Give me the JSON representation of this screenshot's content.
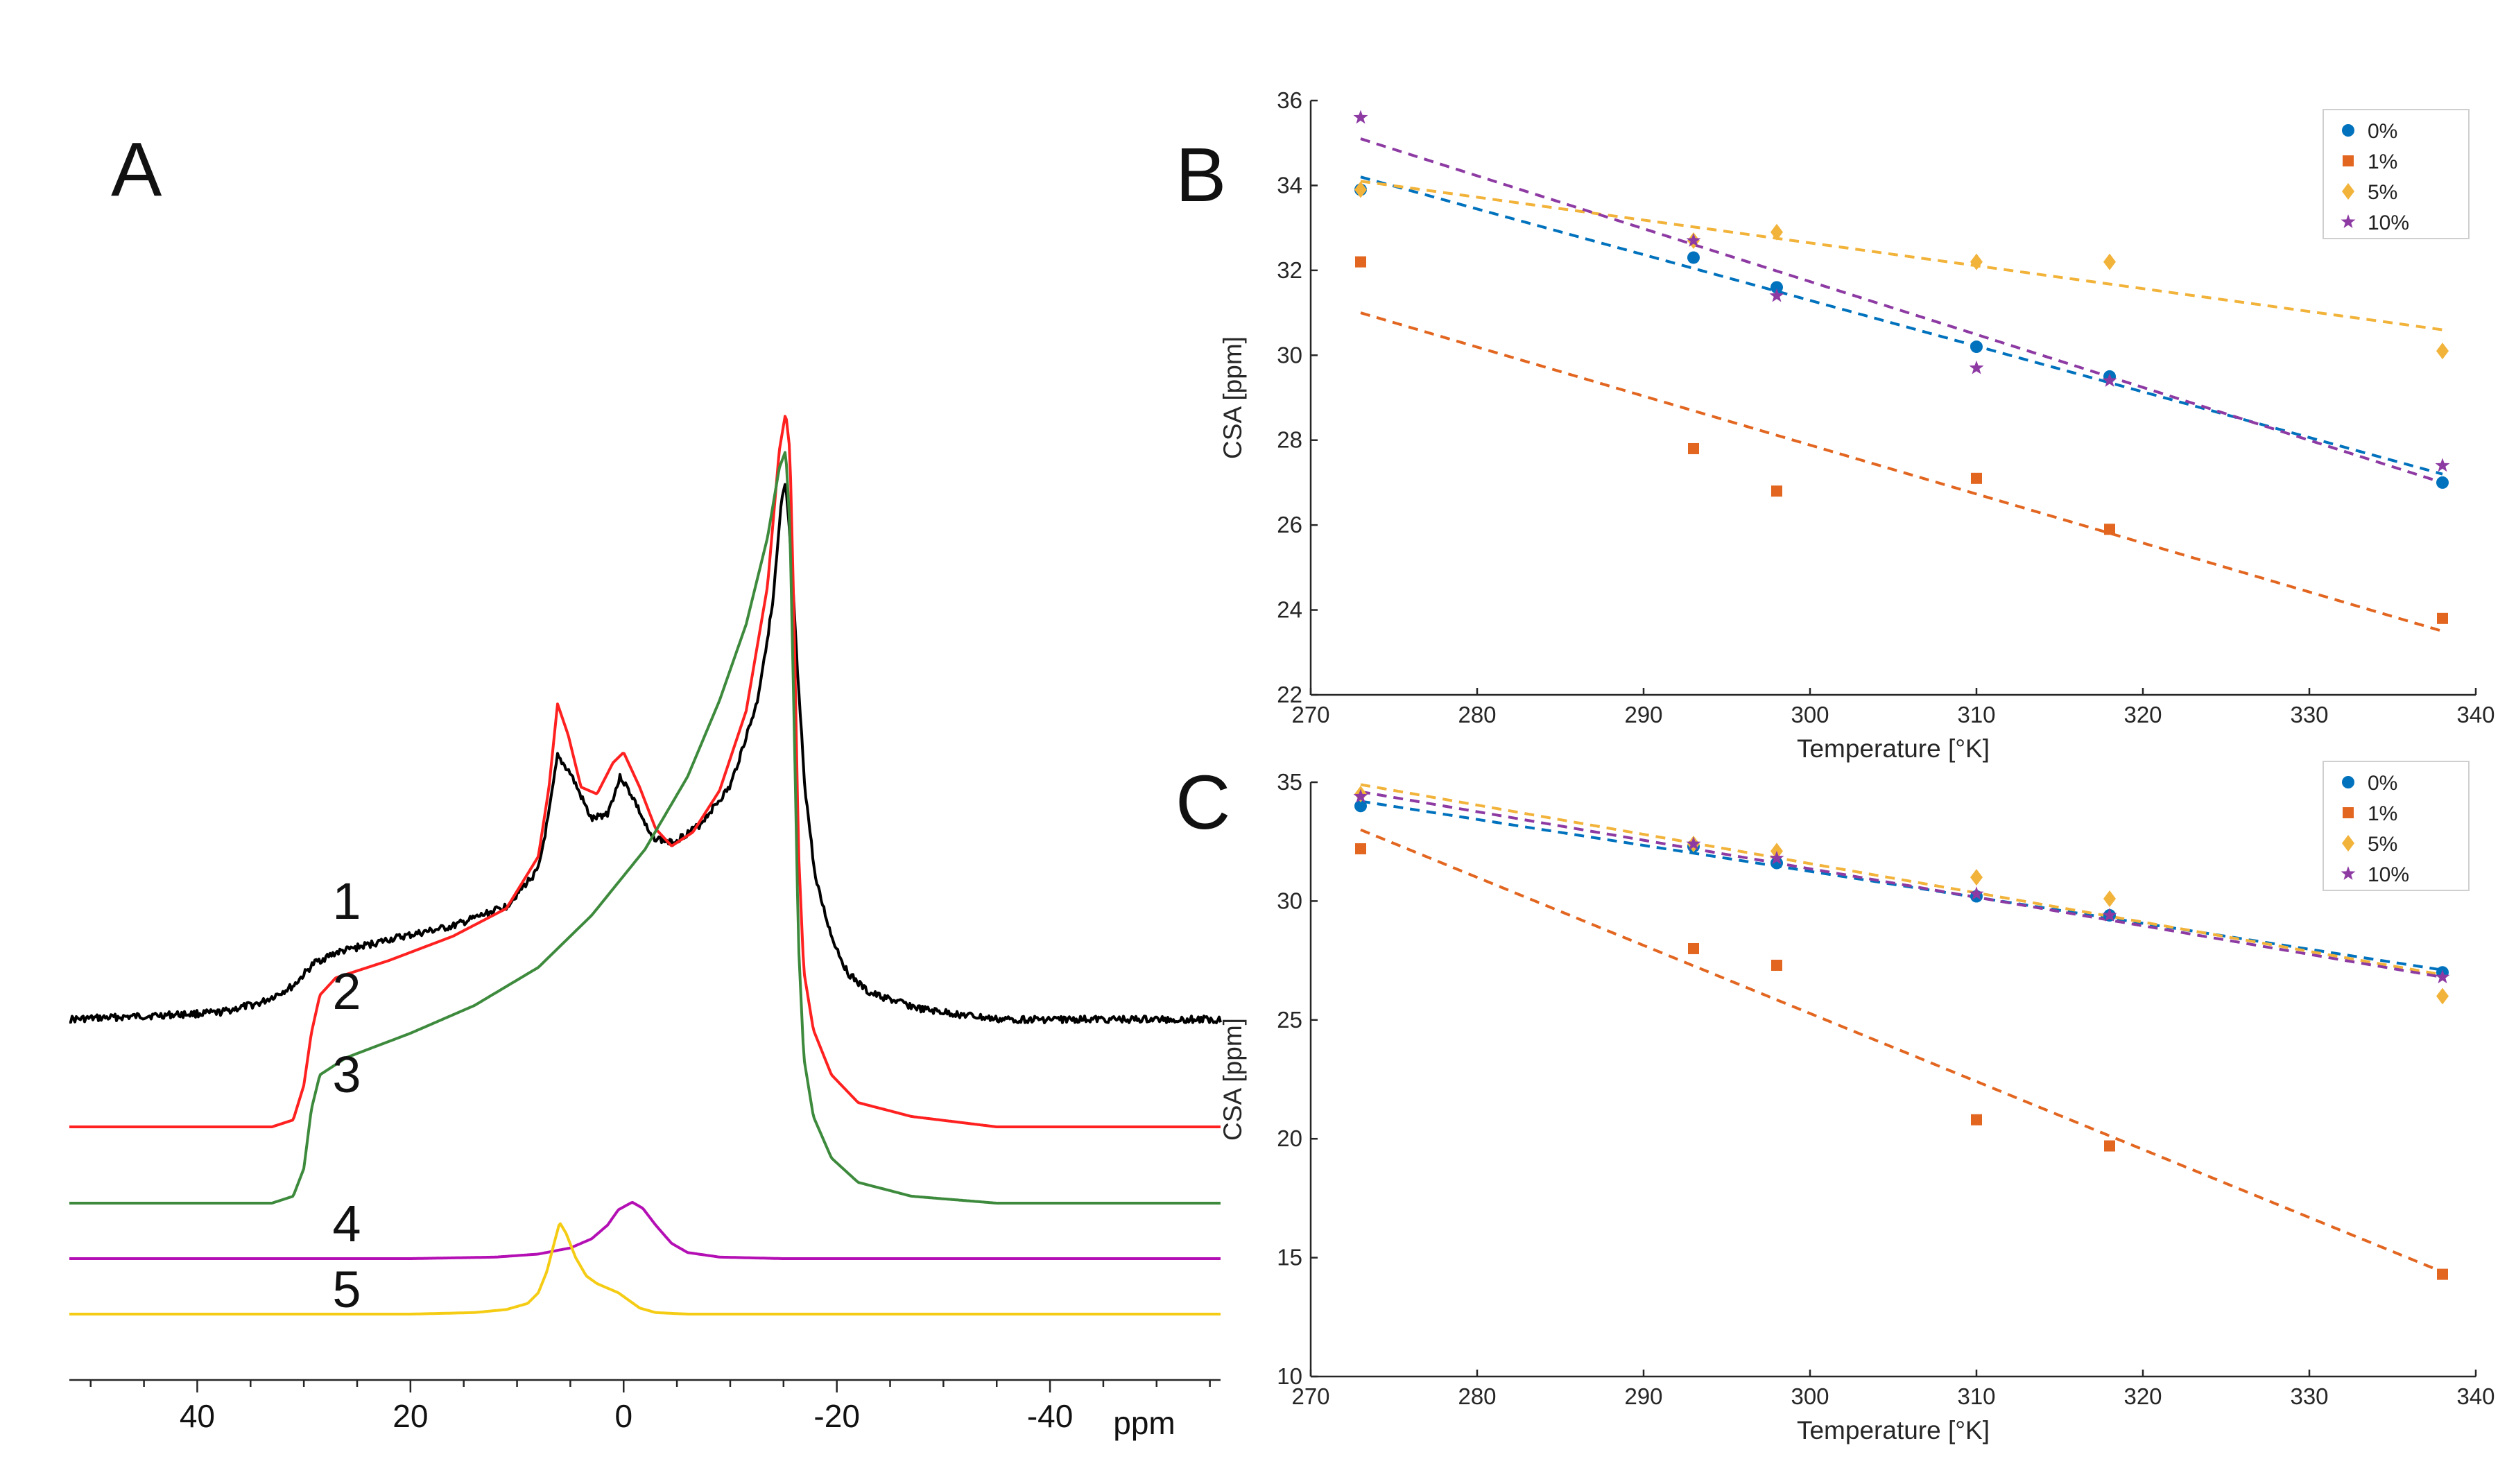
{
  "chart_data": [
    {
      "id": "A",
      "panel_label": "A",
      "type": "line",
      "title": "",
      "xlabel": "ppm",
      "ylabel": "",
      "xlim": [
        52,
        -56
      ],
      "x_ticks": [
        40,
        20,
        0,
        -20,
        -40
      ],
      "x_tick_labels": [
        "40",
        "20",
        "0",
        "-20",
        "-40"
      ],
      "series": [
        {
          "name": "1",
          "label": "1",
          "color": "#000000",
          "baseline": 0.0,
          "noisy": true,
          "points": [
            [
              52,
              0.0
            ],
            [
              38,
              0.02
            ],
            [
              34,
              0.05
            ],
            [
              31,
              0.1
            ],
            [
              29,
              0.17
            ],
            [
              27,
              0.2
            ],
            [
              22,
              0.24
            ],
            [
              16,
              0.28
            ],
            [
              11,
              0.34
            ],
            [
              8,
              0.45
            ],
            [
              7,
              0.62
            ],
            [
              6.2,
              0.79
            ],
            [
              5,
              0.74
            ],
            [
              3,
              0.6
            ],
            [
              1.5,
              0.62
            ],
            [
              0.3,
              0.73
            ],
            [
              -1,
              0.66
            ],
            [
              -2.5,
              0.55
            ],
            [
              -4.5,
              0.53
            ],
            [
              -7,
              0.58
            ],
            [
              -10,
              0.7
            ],
            [
              -12.5,
              0.95
            ],
            [
              -14,
              1.25
            ],
            [
              -14.8,
              1.55
            ],
            [
              -15.2,
              1.61
            ],
            [
              -15.7,
              1.4
            ],
            [
              -16.3,
              1.05
            ],
            [
              -17,
              0.7
            ],
            [
              -18,
              0.42
            ],
            [
              -19.5,
              0.25
            ],
            [
              -21,
              0.14
            ],
            [
              -23,
              0.08
            ],
            [
              -28,
              0.03
            ],
            [
              -35,
              0.0
            ],
            [
              -56,
              0.0
            ]
          ]
        },
        {
          "name": "2",
          "label": "2",
          "color": "#ff2020",
          "baseline": 0.0,
          "noisy": false,
          "points": [
            [
              52,
              0.0
            ],
            [
              33,
              0.0
            ],
            [
              31,
              0.02
            ],
            [
              30,
              0.12
            ],
            [
              29.3,
              0.27
            ],
            [
              28.5,
              0.38
            ],
            [
              27,
              0.43
            ],
            [
              22,
              0.48
            ],
            [
              16,
              0.55
            ],
            [
              11,
              0.63
            ],
            [
              8,
              0.78
            ],
            [
              7,
              0.98
            ],
            [
              6.2,
              1.22
            ],
            [
              5.2,
              1.13
            ],
            [
              4,
              0.98
            ],
            [
              2.5,
              0.96
            ],
            [
              1,
              1.05
            ],
            [
              0,
              1.08
            ],
            [
              -1.5,
              0.98
            ],
            [
              -3,
              0.86
            ],
            [
              -4.5,
              0.81
            ],
            [
              -6.5,
              0.85
            ],
            [
              -9,
              0.97
            ],
            [
              -11.5,
              1.2
            ],
            [
              -13.5,
              1.56
            ],
            [
              -14.6,
              1.95
            ],
            [
              -15.2,
              2.06
            ],
            [
              -15.6,
              1.95
            ],
            [
              -16.0,
              1.45
            ],
            [
              -16.4,
              0.8
            ],
            [
              -16.9,
              0.45
            ],
            [
              -17.8,
              0.28
            ],
            [
              -19.5,
              0.15
            ],
            [
              -22,
              0.07
            ],
            [
              -27,
              0.03
            ],
            [
              -35,
              0.0
            ],
            [
              -56,
              0.0
            ]
          ]
        },
        {
          "name": "3",
          "label": "3",
          "color": "#3d8a3d",
          "baseline": 0.0,
          "noisy": false,
          "points": [
            [
              52,
              0.0
            ],
            [
              33,
              0.0
            ],
            [
              31,
              0.02
            ],
            [
              30,
              0.1
            ],
            [
              29.3,
              0.27
            ],
            [
              28.5,
              0.37
            ],
            [
              26,
              0.42
            ],
            [
              20,
              0.49
            ],
            [
              14,
              0.57
            ],
            [
              8,
              0.68
            ],
            [
              3,
              0.83
            ],
            [
              -2,
              1.02
            ],
            [
              -6,
              1.23
            ],
            [
              -9,
              1.45
            ],
            [
              -11.5,
              1.67
            ],
            [
              -13.5,
              1.92
            ],
            [
              -14.6,
              2.12
            ],
            [
              -15.2,
              2.17
            ],
            [
              -15.6,
              1.95
            ],
            [
              -16.0,
              1.38
            ],
            [
              -16.4,
              0.75
            ],
            [
              -16.9,
              0.42
            ],
            [
              -17.8,
              0.25
            ],
            [
              -19.5,
              0.13
            ],
            [
              -22,
              0.06
            ],
            [
              -27,
              0.02
            ],
            [
              -35,
              0.0
            ],
            [
              -56,
              0.0
            ]
          ]
        },
        {
          "name": "4",
          "label": "4",
          "color": "#b40fb4",
          "baseline": 0.0,
          "noisy": false,
          "points": [
            [
              52,
              0.0
            ],
            [
              20,
              0.0
            ],
            [
              12,
              0.01
            ],
            [
              8,
              0.03
            ],
            [
              5,
              0.07
            ],
            [
              3,
              0.13
            ],
            [
              1.5,
              0.22
            ],
            [
              0.5,
              0.32
            ],
            [
              -0.8,
              0.37
            ],
            [
              -1.8,
              0.33
            ],
            [
              -3,
              0.22
            ],
            [
              -4.5,
              0.1
            ],
            [
              -6,
              0.04
            ],
            [
              -9,
              0.01
            ],
            [
              -15,
              0.0
            ],
            [
              -56,
              0.0
            ]
          ]
        },
        {
          "name": "5",
          "label": "5",
          "color": "#f5cc14",
          "baseline": 0.0,
          "noisy": false,
          "points": [
            [
              52,
              0.0
            ],
            [
              20,
              0.0
            ],
            [
              14,
              0.01
            ],
            [
              11,
              0.03
            ],
            [
              9,
              0.07
            ],
            [
              8,
              0.14
            ],
            [
              7.2,
              0.28
            ],
            [
              6.5,
              0.47
            ],
            [
              6,
              0.6
            ],
            [
              5.4,
              0.53
            ],
            [
              4.5,
              0.37
            ],
            [
              3.5,
              0.25
            ],
            [
              2.5,
              0.2
            ],
            [
              1.5,
              0.17
            ],
            [
              0.5,
              0.14
            ],
            [
              -0.5,
              0.09
            ],
            [
              -1.5,
              0.04
            ],
            [
              -3,
              0.01
            ],
            [
              -6,
              0.0
            ],
            [
              -56,
              0.0
            ]
          ]
        }
      ]
    },
    {
      "id": "B",
      "panel_label": "B",
      "type": "scatter",
      "title": "",
      "xlabel": "Temperature [°K]",
      "ylabel": "CSA [ppm]",
      "xlim": [
        270,
        340
      ],
      "ylim": [
        22,
        36
      ],
      "x_ticks": [
        270,
        280,
        290,
        300,
        310,
        320,
        330,
        340
      ],
      "y_ticks": [
        22,
        24,
        26,
        28,
        30,
        32,
        34,
        36
      ],
      "legend_position": "top-right",
      "series": [
        {
          "name": "0%",
          "color": "#0072bd",
          "marker": "circle",
          "x": [
            273,
            293,
            298,
            310,
            318,
            338
          ],
          "y": [
            33.9,
            32.3,
            31.6,
            30.2,
            29.5,
            27.0
          ],
          "fit": [
            [
              273,
              34.2
            ],
            [
              338,
              27.2
            ]
          ]
        },
        {
          "name": "1%",
          "color": "#e26620",
          "marker": "square",
          "x": [
            273,
            293,
            298,
            310,
            318,
            338
          ],
          "y": [
            32.2,
            27.8,
            26.8,
            27.1,
            25.9,
            23.8
          ],
          "fit": [
            [
              273,
              31.0
            ],
            [
              338,
              23.5
            ]
          ]
        },
        {
          "name": "5%",
          "color": "#f2b33a",
          "marker": "diamond",
          "x": [
            273,
            293,
            298,
            310,
            318,
            338
          ],
          "y": [
            33.9,
            32.7,
            32.9,
            32.2,
            32.2,
            30.1
          ],
          "fit": [
            [
              273,
              34.1
            ],
            [
              338,
              30.6
            ]
          ]
        },
        {
          "name": "10%",
          "color": "#8d3aa3",
          "marker": "star",
          "x": [
            273,
            293,
            298,
            310,
            318,
            338
          ],
          "y": [
            35.6,
            32.7,
            31.4,
            29.7,
            29.4,
            27.4
          ],
          "fit": [
            [
              273,
              35.1
            ],
            [
              338,
              27.0
            ]
          ]
        }
      ]
    },
    {
      "id": "C",
      "panel_label": "C",
      "type": "scatter",
      "title": "",
      "xlabel": "Temperature [°K]",
      "ylabel": "CSA [ppm]",
      "xlim": [
        270,
        340
      ],
      "ylim": [
        10,
        35
      ],
      "x_ticks": [
        270,
        280,
        290,
        300,
        310,
        320,
        330,
        340
      ],
      "y_ticks": [
        10,
        15,
        20,
        25,
        30,
        35
      ],
      "legend_position": "top-right",
      "series": [
        {
          "name": "0%",
          "color": "#0072bd",
          "marker": "circle",
          "x": [
            273,
            293,
            298,
            310,
            318,
            338
          ],
          "y": [
            34.0,
            32.3,
            31.6,
            30.2,
            29.4,
            27.0
          ],
          "fit": [
            [
              273,
              34.2
            ],
            [
              338,
              27.1
            ]
          ]
        },
        {
          "name": "1%",
          "color": "#e26620",
          "marker": "square",
          "x": [
            273,
            293,
            298,
            310,
            318,
            338
          ],
          "y": [
            32.2,
            28.0,
            27.3,
            20.8,
            19.7,
            14.3
          ],
          "fit": [
            [
              273,
              33.0
            ],
            [
              338,
              14.4
            ]
          ]
        },
        {
          "name": "5%",
          "color": "#f2b33a",
          "marker": "diamond",
          "x": [
            273,
            293,
            298,
            310,
            318,
            338
          ],
          "y": [
            34.5,
            32.4,
            32.1,
            31.0,
            30.1,
            26.0
          ],
          "fit": [
            [
              273,
              34.9
            ],
            [
              338,
              26.9
            ]
          ]
        },
        {
          "name": "10%",
          "color": "#8d3aa3",
          "marker": "star",
          "x": [
            273,
            293,
            298,
            310,
            318,
            338
          ],
          "y": [
            34.4,
            32.4,
            31.8,
            30.3,
            29.4,
            26.8
          ],
          "fit": [
            [
              273,
              34.6
            ],
            [
              338,
              26.8
            ]
          ]
        }
      ]
    }
  ]
}
